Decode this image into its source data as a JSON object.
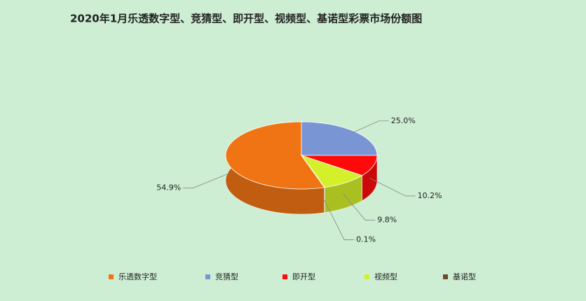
{
  "chart_data": {
    "type": "pie",
    "title": "2020年1月乐透数字型、竞猜型、即开型、视频型、基诺型彩票市场份额图",
    "categories": [
      "乐透数字型",
      "竞猜型",
      "即开型",
      "视频型",
      "基诺型"
    ],
    "values": [
      54.9,
      25.0,
      10.2,
      9.8,
      0.1
    ],
    "value_labels": [
      "54.9%",
      "25.0%",
      "10.2%",
      "9.8%",
      "0.1%"
    ],
    "colors": [
      "#f07414",
      "#7a95d4",
      "#ff0a0a",
      "#d4f02a",
      "#6e4b2a"
    ],
    "legend": "bottom"
  }
}
